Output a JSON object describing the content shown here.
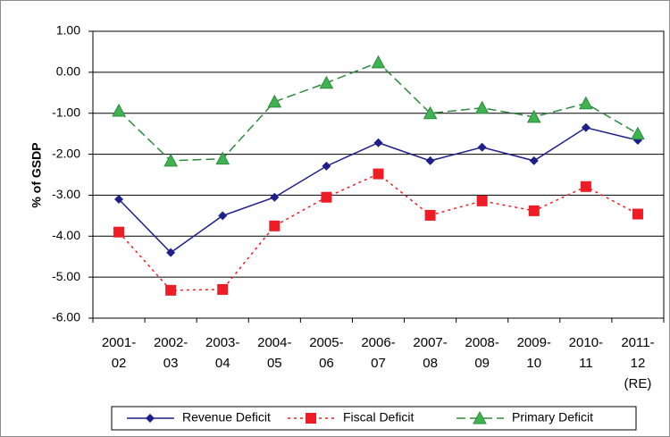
{
  "chart_data": {
    "type": "line",
    "y_label": "% of GSDP",
    "categories": [
      "2001-\n02",
      "2002-\n03",
      "2003-\n04",
      "2004-\n05",
      "2005-\n06",
      "2006-\n07",
      "2007-\n08",
      "2008-\n09",
      "2009-\n10",
      "2010-\n11",
      "2011-\n12\n(RE)"
    ],
    "series": [
      {
        "name": "Revenue Deficit",
        "color": "#1f1f8c",
        "marker": "diamond",
        "line_style": "solid",
        "values": [
          -3.1,
          -4.4,
          -3.5,
          -3.05,
          -2.29,
          -1.72,
          -2.16,
          -1.83,
          -2.16,
          -1.35,
          -1.66
        ]
      },
      {
        "name": "Fiscal Deficit",
        "color": "#ee1c24",
        "marker": "square",
        "line_style": "dotted",
        "values": [
          -3.9,
          -5.32,
          -5.3,
          -3.75,
          -3.05,
          -2.48,
          -3.49,
          -3.14,
          -3.38,
          -2.79,
          -3.46
        ]
      },
      {
        "name": "Primary Deficit",
        "color": "#2e8b3d",
        "marker": "triangle",
        "line_style": "dashed",
        "values": [
          -0.94,
          -2.16,
          -2.11,
          -0.72,
          -0.26,
          0.24,
          -1.0,
          -0.87,
          -1.09,
          -0.76,
          -1.5
        ]
      }
    ],
    "ylim": [
      -6,
      1
    ],
    "yticks": [
      {
        "value": 1,
        "label": "1.00"
      },
      {
        "value": 0,
        "label": "0.00"
      },
      {
        "value": -1,
        "label": "-1.00"
      },
      {
        "value": -2,
        "label": "-2.00"
      },
      {
        "value": -3,
        "label": "-3.00"
      },
      {
        "value": -4,
        "label": "-4.00"
      },
      {
        "value": -5,
        "label": "-5.00"
      },
      {
        "value": -6,
        "label": "-6.00"
      }
    ],
    "grid": true,
    "legend": "bottom"
  }
}
